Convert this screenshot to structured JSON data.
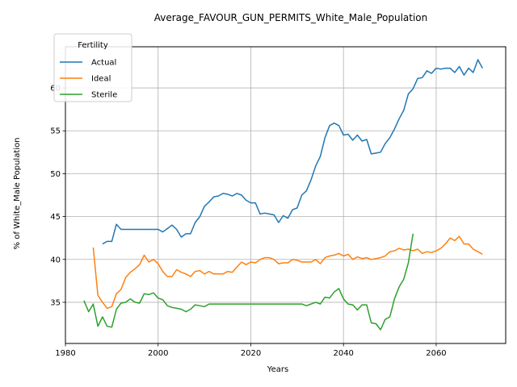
{
  "chart_data": {
    "type": "line",
    "title": "Average_FAVOUR_GUN_PERMITS_White_Male_Population",
    "xlabel": "Years",
    "ylabel": "% of White_Male Population",
    "xlim": [
      1980,
      2075
    ],
    "ylim": [
      30.2,
      64.8
    ],
    "xticks": [
      1980,
      2000,
      2020,
      2040,
      2060
    ],
    "yticks": [
      35,
      40,
      45,
      50,
      55,
      60
    ],
    "grid": true,
    "legend": {
      "title": "Fertility",
      "placement": "top-left"
    },
    "colors": {
      "Actual": "#1f77b4",
      "Ideal": "#ff7f0e",
      "Sterile": "#2ca02c"
    },
    "series": [
      {
        "name": "Actual",
        "x": [
          1988,
          1989,
          1990,
          1991,
          1992,
          1993,
          1994,
          1995,
          1996,
          1997,
          1998,
          1999,
          2000,
          2001,
          2002,
          2003,
          2004,
          2005,
          2006,
          2007,
          2008,
          2009,
          2010,
          2011,
          2012,
          2013,
          2014,
          2015,
          2016,
          2017,
          2018,
          2019,
          2020,
          2021,
          2022,
          2023,
          2024,
          2025,
          2026,
          2027,
          2028,
          2029,
          2030,
          2031,
          2032,
          2033,
          2034,
          2035,
          2036,
          2037,
          2038,
          2039,
          2040,
          2041,
          2042,
          2043,
          2044,
          2045,
          2046,
          2047,
          2048,
          2049,
          2050,
          2051,
          2052,
          2053,
          2054,
          2055,
          2056,
          2057,
          2058,
          2059,
          2060,
          2061,
          2062,
          2063,
          2064,
          2065,
          2066,
          2067,
          2068,
          2069,
          2070
        ],
        "y": [
          41.8,
          42.1,
          42.1,
          44.1,
          43.5,
          43.5,
          43.5,
          43.5,
          43.5,
          43.5,
          43.5,
          43.5,
          43.5,
          43.2,
          43.6,
          44.0,
          43.5,
          42.6,
          43.0,
          43.0,
          44.3,
          45.0,
          46.2,
          46.7,
          47.3,
          47.4,
          47.7,
          47.6,
          47.4,
          47.7,
          47.5,
          46.9,
          46.6,
          46.6,
          45.3,
          45.4,
          45.3,
          45.2,
          44.3,
          45.1,
          44.8,
          45.8,
          46.0,
          47.5,
          48.0,
          49.3,
          50.9,
          52.0,
          54.2,
          55.6,
          55.9,
          55.6,
          54.5,
          54.6,
          53.9,
          54.5,
          53.8,
          54.0,
          52.3,
          52.4,
          52.5,
          53.5,
          54.2,
          55.2,
          56.4,
          57.4,
          59.3,
          59.9,
          61.1,
          61.2,
          62.0,
          61.7,
          62.3,
          62.2,
          62.3,
          62.3,
          61.8,
          62.5,
          61.5,
          62.3,
          61.8,
          63.3,
          62.3
        ]
      },
      {
        "name": "Ideal",
        "x": [
          1986,
          1987,
          1988,
          1989,
          1990,
          1991,
          1992,
          1993,
          1994,
          1995,
          1996,
          1997,
          1998,
          1999,
          2000,
          2001,
          2002,
          2003,
          2004,
          2005,
          2006,
          2007,
          2008,
          2009,
          2010,
          2011,
          2012,
          2013,
          2014,
          2015,
          2016,
          2017,
          2018,
          2019,
          2020,
          2021,
          2022,
          2023,
          2024,
          2025,
          2026,
          2027,
          2028,
          2029,
          2030,
          2031,
          2032,
          2033,
          2034,
          2035,
          2036,
          2037,
          2038,
          2039,
          2040,
          2041,
          2042,
          2043,
          2044,
          2045,
          2046,
          2047,
          2048,
          2049,
          2050,
          2051,
          2052,
          2053,
          2054,
          2055,
          2056,
          2057,
          2058,
          2059,
          2060,
          2061,
          2062,
          2063,
          2064,
          2065,
          2066,
          2067,
          2068,
          2069,
          2070
        ],
        "y": [
          41.4,
          35.8,
          35.0,
          34.3,
          34.5,
          36.0,
          36.5,
          37.9,
          38.5,
          38.9,
          39.4,
          40.5,
          39.7,
          40.0,
          39.5,
          38.6,
          38.0,
          38.0,
          38.8,
          38.5,
          38.3,
          38.0,
          38.6,
          38.7,
          38.3,
          38.6,
          38.3,
          38.3,
          38.3,
          38.6,
          38.5,
          39.1,
          39.7,
          39.4,
          39.7,
          39.6,
          40.0,
          40.2,
          40.2,
          40.0,
          39.5,
          39.6,
          39.6,
          40.0,
          39.9,
          39.7,
          39.7,
          39.7,
          40.0,
          39.5,
          40.2,
          40.4,
          40.5,
          40.7,
          40.4,
          40.6,
          40.0,
          40.3,
          40.1,
          40.2,
          40.0,
          40.1,
          40.2,
          40.4,
          40.9,
          41.0,
          41.3,
          41.1,
          41.2,
          41.0,
          41.2,
          40.7,
          40.9,
          40.8,
          41.0,
          41.3,
          41.8,
          42.5,
          42.2,
          42.7,
          41.8,
          41.8,
          41.2,
          40.9,
          40.6
        ]
      },
      {
        "name": "Sterile",
        "x": [
          1984,
          1985,
          1986,
          1987,
          1988,
          1989,
          1990,
          1991,
          1992,
          1993,
          1994,
          1995,
          1996,
          1997,
          1998,
          1999,
          2000,
          2001,
          2002,
          2003,
          2004,
          2005,
          2006,
          2007,
          2008,
          2009,
          2010,
          2011,
          2012,
          2013,
          2014,
          2015,
          2016,
          2017,
          2018,
          2019,
          2020,
          2021,
          2022,
          2023,
          2024,
          2025,
          2026,
          2027,
          2028,
          2029,
          2030,
          2031,
          2032,
          2033,
          2034,
          2035,
          2036,
          2037,
          2038,
          2039,
          2040,
          2041,
          2042,
          2043,
          2044,
          2045,
          2046,
          2047,
          2048,
          2049,
          2050,
          2051,
          2052,
          2053,
          2054,
          2055
        ],
        "y": [
          35.2,
          33.9,
          34.8,
          32.2,
          33.3,
          32.2,
          32.1,
          34.2,
          34.9,
          35.0,
          35.4,
          35.0,
          34.9,
          36.0,
          35.9,
          36.1,
          35.5,
          35.3,
          34.6,
          34.4,
          34.3,
          34.2,
          33.9,
          34.2,
          34.7,
          34.6,
          34.5,
          34.8,
          34.8,
          34.8,
          34.8,
          34.8,
          34.8,
          34.8,
          34.8,
          34.8,
          34.8,
          34.8,
          34.8,
          34.8,
          34.8,
          34.8,
          34.8,
          34.8,
          34.8,
          34.8,
          34.8,
          34.8,
          34.6,
          34.8,
          35.0,
          34.8,
          35.6,
          35.5,
          36.2,
          36.6,
          35.4,
          34.8,
          34.7,
          34.1,
          34.7,
          34.7,
          32.6,
          32.5,
          31.8,
          33.0,
          33.3,
          35.4,
          36.8,
          37.7,
          39.6,
          43.0
        ]
      }
    ]
  }
}
